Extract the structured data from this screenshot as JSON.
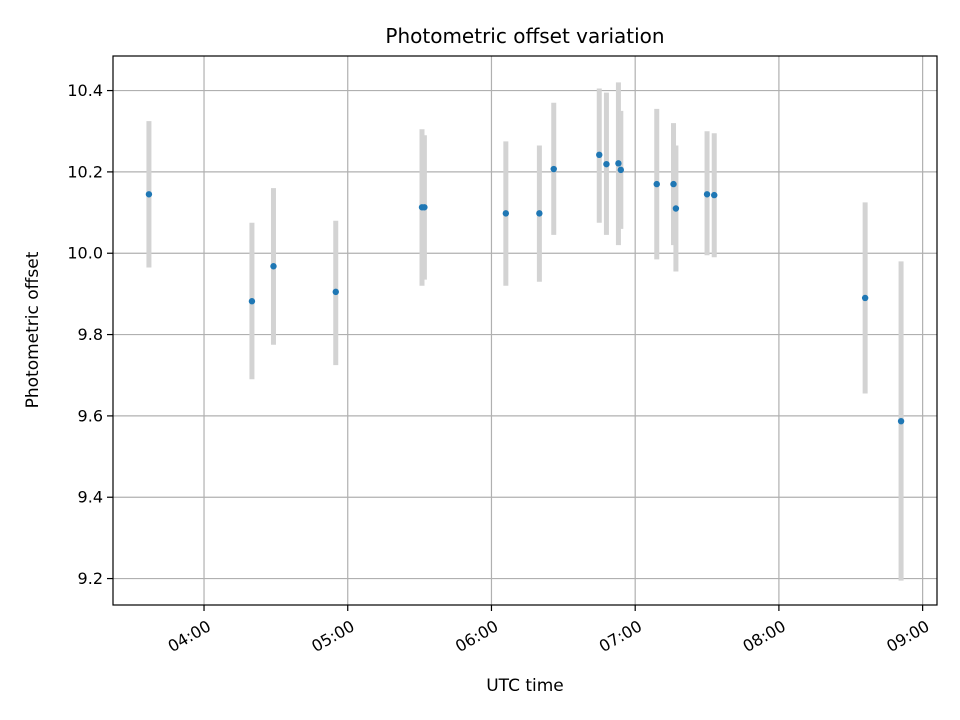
{
  "chart_data": {
    "type": "scatter",
    "title": "Photometric offset variation",
    "xlabel": "UTC time",
    "ylabel": "Photometric offset",
    "x_ticks": [
      "04:00",
      "05:00",
      "06:00",
      "07:00",
      "08:00",
      "09:00"
    ],
    "y_ticks": [
      "9.2",
      "9.4",
      "9.6",
      "9.8",
      "10.0",
      "10.2",
      "10.4"
    ],
    "xlim": [
      "03:22",
      "09:06"
    ],
    "ylim": [
      9.135,
      10.485
    ],
    "grid": true,
    "colors": {
      "marker": "#1f77b4",
      "errorbar": "#d3d3d3",
      "grid": "#b0b0b0"
    },
    "points": [
      {
        "time": "03:37",
        "y": 10.145,
        "low": 9.965,
        "high": 10.325
      },
      {
        "time": "04:20",
        "y": 9.882,
        "low": 9.69,
        "high": 10.075
      },
      {
        "time": "04:29",
        "y": 9.968,
        "low": 9.775,
        "high": 10.16
      },
      {
        "time": "04:55",
        "y": 9.905,
        "low": 9.725,
        "high": 10.08
      },
      {
        "time": "05:31",
        "y": 10.113,
        "low": 9.92,
        "high": 10.305
      },
      {
        "time": "05:32",
        "y": 10.113,
        "low": 9.935,
        "high": 10.29
      },
      {
        "time": "06:06",
        "y": 10.098,
        "low": 9.92,
        "high": 10.275
      },
      {
        "time": "06:20",
        "y": 10.098,
        "low": 9.93,
        "high": 10.265
      },
      {
        "time": "06:26",
        "y": 10.207,
        "low": 10.045,
        "high": 10.37
      },
      {
        "time": "06:45",
        "y": 10.242,
        "low": 10.075,
        "high": 10.405
      },
      {
        "time": "06:48",
        "y": 10.219,
        "low": 10.045,
        "high": 10.395
      },
      {
        "time": "06:53",
        "y": 10.221,
        "low": 10.02,
        "high": 10.42
      },
      {
        "time": "06:54",
        "y": 10.205,
        "low": 10.06,
        "high": 10.35
      },
      {
        "time": "07:09",
        "y": 10.17,
        "low": 9.985,
        "high": 10.355
      },
      {
        "time": "07:16",
        "y": 10.17,
        "low": 10.02,
        "high": 10.32
      },
      {
        "time": "07:17",
        "y": 10.11,
        "low": 9.955,
        "high": 10.265
      },
      {
        "time": "07:30",
        "y": 10.145,
        "low": 9.995,
        "high": 10.3
      },
      {
        "time": "07:33",
        "y": 10.143,
        "low": 9.99,
        "high": 10.295
      },
      {
        "time": "08:36",
        "y": 9.89,
        "low": 9.655,
        "high": 10.125
      },
      {
        "time": "08:51",
        "y": 9.587,
        "low": 9.195,
        "high": 9.98
      }
    ]
  }
}
